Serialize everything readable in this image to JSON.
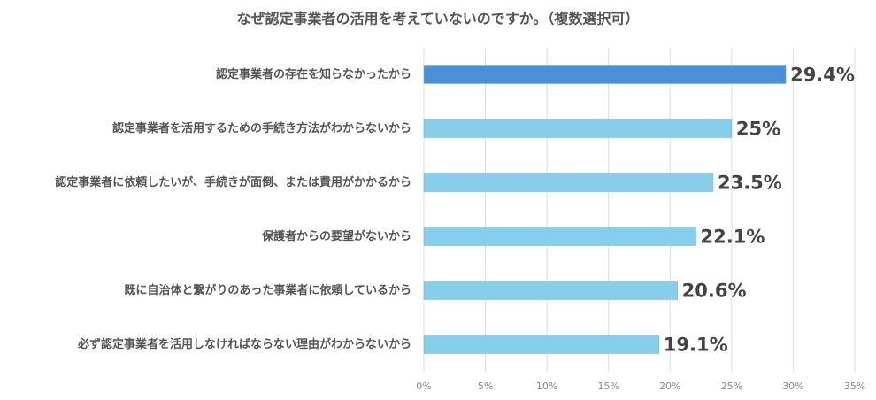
{
  "chart_data": {
    "type": "hbar",
    "title": "なぜ認定事業者の活用を考えていないのですか。（複数選択可）",
    "categories": [
      "認定事業者の存在を知らなかったから",
      "認定事業者を活用するための手続き方法がわからないから",
      "認定事業者に依頼したいが、手続きが面倒、または費用がかかるから",
      "保護者からの要望がないから",
      "既に自治体と繋がりのあった事業者に依頼しているから",
      "必ず認定事業者を活用しなければならない理由がわからないから"
    ],
    "values": [
      29.4,
      25,
      23.5,
      22.1,
      20.6,
      19.1
    ],
    "value_labels": [
      "29.4%",
      "25%",
      "23.5%",
      "22.1%",
      "20.6%",
      "19.1%"
    ],
    "colors": [
      "#4a90d9",
      "#87ceeb",
      "#87ceeb",
      "#87ceeb",
      "#87ceeb",
      "#87ceeb"
    ],
    "xlim": [
      0,
      35
    ],
    "xticks": [
      {
        "value": 0,
        "label": "0%"
      },
      {
        "value": 5,
        "label": "5%"
      },
      {
        "value": 10,
        "label": "10%"
      },
      {
        "value": 15,
        "label": "15%"
      },
      {
        "value": 20,
        "label": "20%"
      },
      {
        "value": 25,
        "label": "25%"
      },
      {
        "value": 30,
        "label": "30%"
      },
      {
        "value": 35,
        "label": "35%"
      }
    ],
    "grid": true
  }
}
